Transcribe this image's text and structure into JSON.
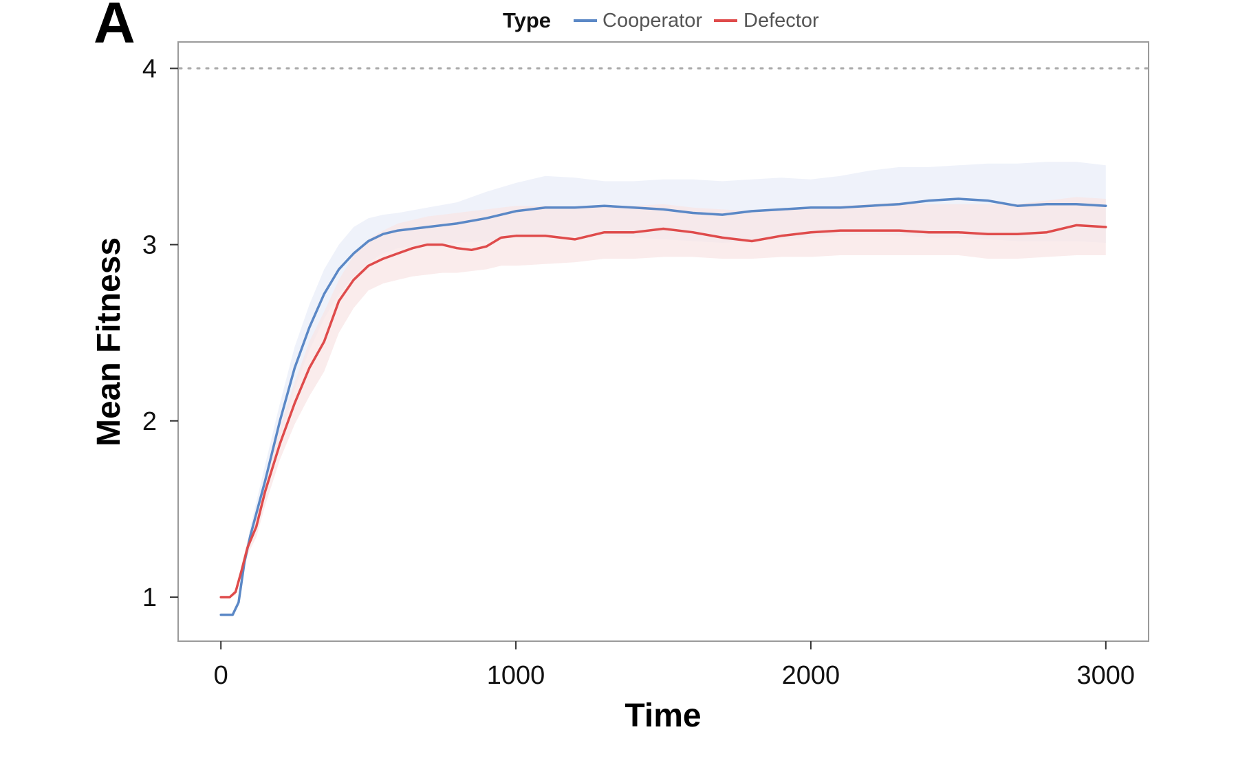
{
  "panel_label": "A",
  "chart_data": {
    "type": "line",
    "title": "",
    "xlabel": "Time",
    "ylabel": "Mean Fitness",
    "xlim": [
      -145,
      3145
    ],
    "ylim": [
      0.75,
      4.15
    ],
    "xticks": [
      0,
      1000,
      2000,
      3000
    ],
    "yticks": [
      1,
      2,
      3,
      4
    ],
    "grid": false,
    "legend": {
      "title": "Type",
      "placement": "top-center"
    },
    "reference_line": {
      "y": 4,
      "style": "dotted",
      "color": "#a8a8a8"
    },
    "series": [
      {
        "name": "Cooperator",
        "color": "#5b88c6",
        "band_color": "#e9eef8",
        "x": [
          0,
          40,
          60,
          80,
          100,
          150,
          200,
          250,
          300,
          350,
          400,
          450,
          500,
          550,
          600,
          700,
          800,
          900,
          1000,
          1100,
          1200,
          1300,
          1400,
          1500,
          1600,
          1700,
          1800,
          1900,
          2000,
          2100,
          2200,
          2300,
          2400,
          2500,
          2600,
          2700,
          2800,
          2900,
          3000
        ],
        "y": [
          0.9,
          0.9,
          0.97,
          1.2,
          1.35,
          1.66,
          2.0,
          2.3,
          2.53,
          2.72,
          2.86,
          2.95,
          3.02,
          3.06,
          3.08,
          3.1,
          3.12,
          3.15,
          3.19,
          3.21,
          3.21,
          3.22,
          3.21,
          3.2,
          3.18,
          3.17,
          3.19,
          3.2,
          3.21,
          3.21,
          3.22,
          3.23,
          3.25,
          3.26,
          3.25,
          3.22,
          3.23,
          3.23,
          3.22
        ],
        "upper": [
          0.9,
          0.9,
          0.99,
          1.22,
          1.4,
          1.75,
          2.1,
          2.42,
          2.66,
          2.86,
          3.0,
          3.1,
          3.15,
          3.17,
          3.18,
          3.21,
          3.24,
          3.3,
          3.35,
          3.39,
          3.38,
          3.36,
          3.36,
          3.37,
          3.37,
          3.36,
          3.37,
          3.38,
          3.37,
          3.39,
          3.42,
          3.44,
          3.44,
          3.45,
          3.46,
          3.46,
          3.47,
          3.47,
          3.45
        ],
        "lower": [
          0.9,
          0.9,
          0.95,
          1.17,
          1.3,
          1.58,
          1.9,
          2.18,
          2.4,
          2.58,
          2.72,
          2.82,
          2.9,
          2.95,
          2.98,
          3.0,
          3.01,
          3.02,
          3.05,
          3.06,
          3.05,
          3.05,
          3.04,
          3.03,
          3.02,
          3.01,
          3.02,
          3.03,
          3.04,
          3.05,
          3.06,
          3.05,
          3.04,
          3.04,
          3.03,
          3.02,
          3.02,
          3.02,
          3.01
        ]
      },
      {
        "name": "Defector",
        "color": "#df4b4b",
        "band_color": "#f8e6e6",
        "x": [
          0,
          30,
          50,
          70,
          90,
          120,
          150,
          200,
          250,
          300,
          350,
          400,
          450,
          500,
          550,
          600,
          650,
          700,
          750,
          800,
          850,
          900,
          950,
          1000,
          1100,
          1200,
          1300,
          1400,
          1500,
          1600,
          1700,
          1800,
          1900,
          2000,
          2100,
          2200,
          2300,
          2400,
          2500,
          2600,
          2700,
          2800,
          2900,
          3000
        ],
        "y": [
          1.0,
          1.0,
          1.03,
          1.15,
          1.28,
          1.4,
          1.6,
          1.87,
          2.1,
          2.3,
          2.45,
          2.68,
          2.8,
          2.88,
          2.92,
          2.95,
          2.98,
          3.0,
          3.0,
          2.98,
          2.97,
          2.99,
          3.04,
          3.05,
          3.05,
          3.03,
          3.07,
          3.07,
          3.09,
          3.07,
          3.04,
          3.02,
          3.05,
          3.07,
          3.08,
          3.08,
          3.08,
          3.07,
          3.07,
          3.06,
          3.06,
          3.07,
          3.11,
          3.1
        ],
        "upper": [
          1.0,
          1.0,
          1.05,
          1.18,
          1.32,
          1.46,
          1.68,
          1.96,
          2.22,
          2.45,
          2.62,
          2.8,
          2.94,
          3.03,
          3.08,
          3.12,
          3.14,
          3.16,
          3.17,
          3.18,
          3.19,
          3.2,
          3.21,
          3.22,
          3.22,
          3.21,
          3.22,
          3.22,
          3.23,
          3.21,
          3.2,
          3.19,
          3.2,
          3.21,
          3.22,
          3.23,
          3.24,
          3.23,
          3.23,
          3.23,
          3.23,
          3.25,
          3.27,
          3.26
        ],
        "lower": [
          1.0,
          1.0,
          1.01,
          1.12,
          1.24,
          1.34,
          1.52,
          1.78,
          1.98,
          2.14,
          2.28,
          2.5,
          2.64,
          2.74,
          2.78,
          2.8,
          2.82,
          2.83,
          2.84,
          2.84,
          2.85,
          2.86,
          2.88,
          2.88,
          2.89,
          2.9,
          2.92,
          2.92,
          2.93,
          2.93,
          2.92,
          2.92,
          2.93,
          2.93,
          2.94,
          2.94,
          2.94,
          2.94,
          2.94,
          2.92,
          2.92,
          2.93,
          2.94,
          2.94
        ]
      }
    ]
  }
}
